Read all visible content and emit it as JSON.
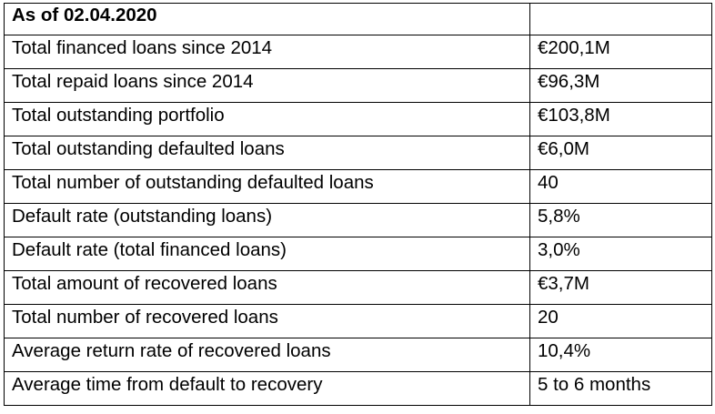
{
  "table": {
    "header": {
      "label": "As of 02.04.2020",
      "value": ""
    },
    "rows": [
      {
        "label": "Total financed loans since 2014",
        "value": "€200,1M"
      },
      {
        "label": "Total repaid loans since 2014",
        "value": "€96,3M"
      },
      {
        "label": "Total outstanding portfolio",
        "value": "€103,8M"
      },
      {
        "label": "Total outstanding defaulted loans",
        "value": "€6,0M"
      },
      {
        "label": "Total number of outstanding defaulted loans",
        "value": "40"
      },
      {
        "label": "Default rate (outstanding loans)",
        "value": "5,8%"
      },
      {
        "label": "Default rate (total financed loans)",
        "value": "3,0%"
      },
      {
        "label": "Total amount of recovered loans",
        "value": "€3,7M"
      },
      {
        "label": "Total number of recovered loans",
        "value": "20"
      },
      {
        "label": "Average return rate of recovered loans",
        "value": "10,4%"
      },
      {
        "label": "Average time from default to recovery",
        "value": "5 to 6 months"
      }
    ]
  }
}
